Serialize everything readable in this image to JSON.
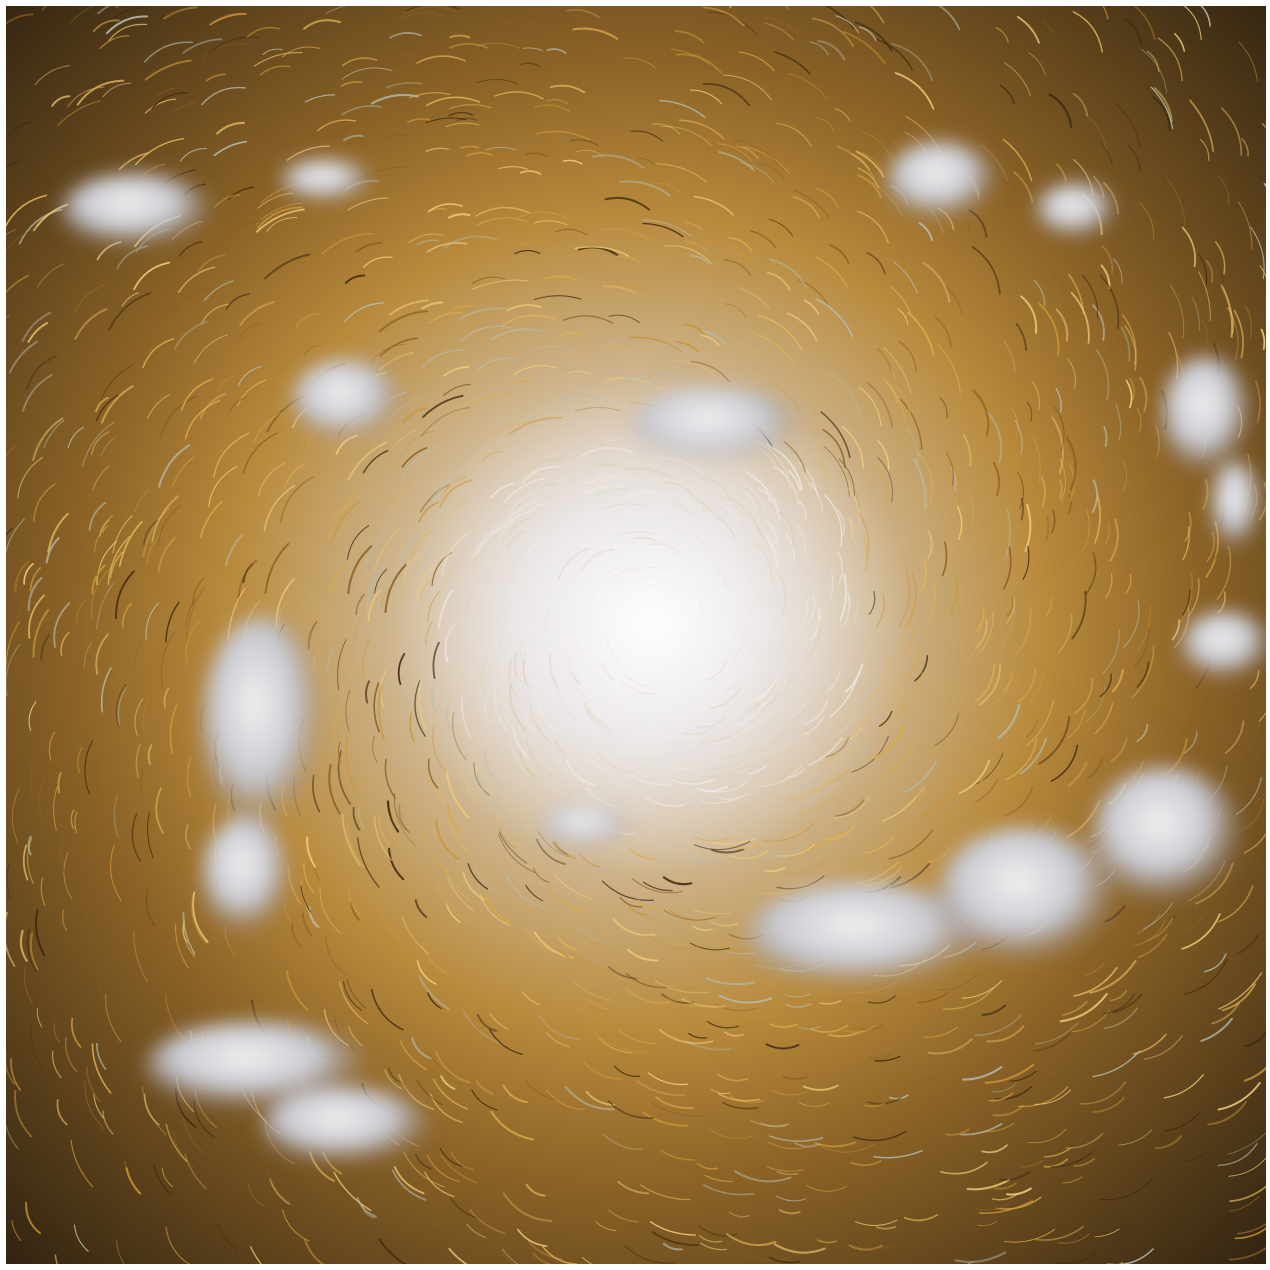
{
  "image": {
    "subject": "painting",
    "colors": {
      "center_light": "#f4f2f6",
      "mid_gold": "#b88a3c",
      "outer_brown": "#4a3316",
      "cloud": "#d9dbe3",
      "cloud_shadow": "#8e8a94"
    }
  }
}
